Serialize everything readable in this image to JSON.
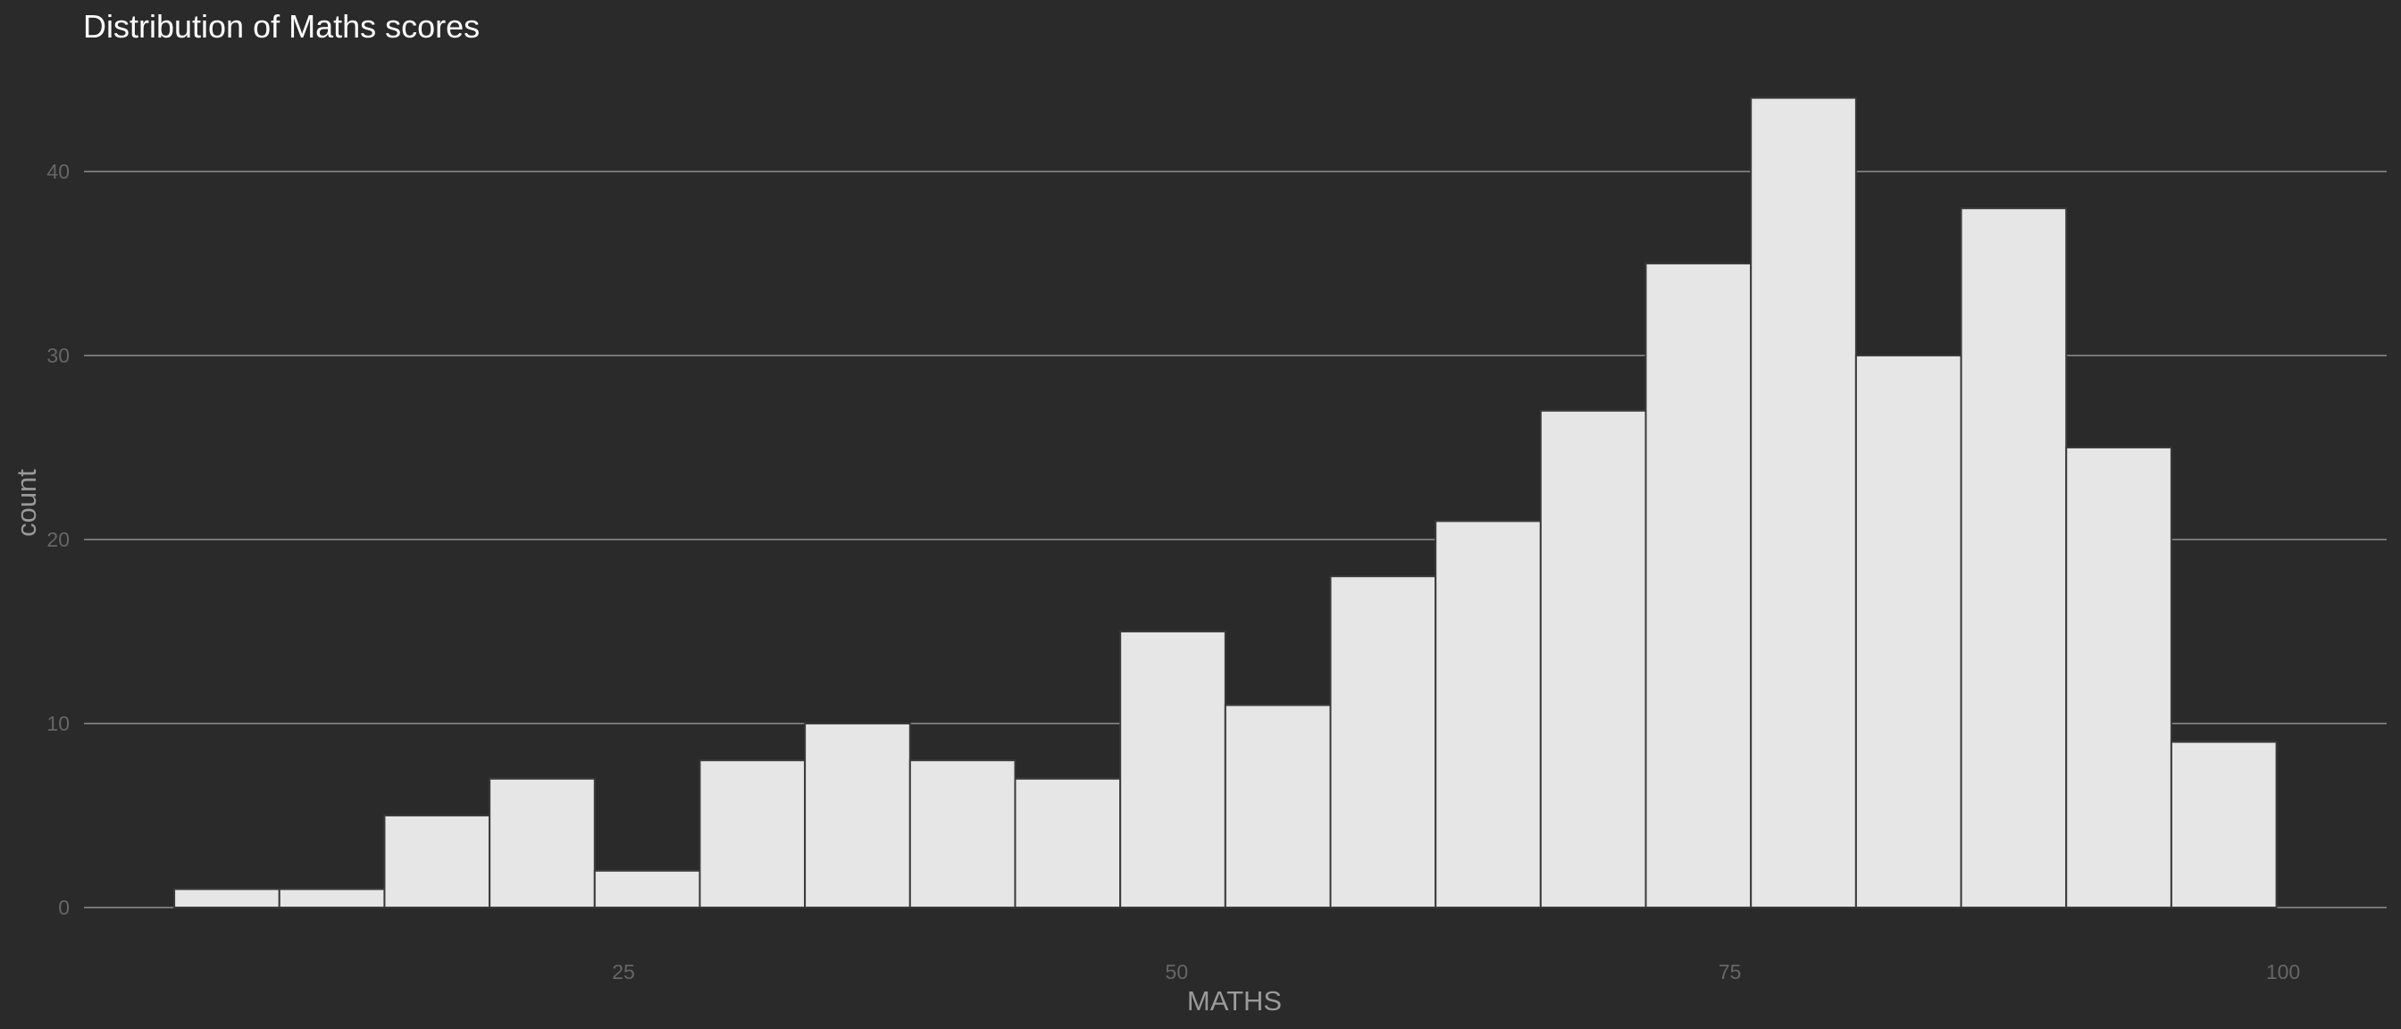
{
  "chart_data": {
    "type": "bar",
    "title": "Distribution of Maths scores",
    "xlabel": "MATHS",
    "ylabel": "count",
    "xlim": [
      0,
      102
    ],
    "ylim": [
      0,
      45
    ],
    "xticks": [
      25,
      50,
      75,
      100
    ],
    "yticks": [
      0,
      10,
      20,
      30,
      40
    ],
    "grid": true,
    "bin_edges": [
      4.7,
      9.45,
      14.2,
      18.95,
      23.7,
      28.45,
      33.2,
      37.95,
      42.7,
      47.45,
      52.2,
      56.95,
      61.7,
      66.45,
      71.2,
      75.95,
      80.7,
      85.45,
      90.2,
      94.95,
      99.7
    ],
    "values": [
      1,
      1,
      5,
      7,
      2,
      8,
      10,
      8,
      7,
      15,
      11,
      18,
      21,
      27,
      35,
      44,
      30,
      38,
      25,
      9
    ]
  }
}
